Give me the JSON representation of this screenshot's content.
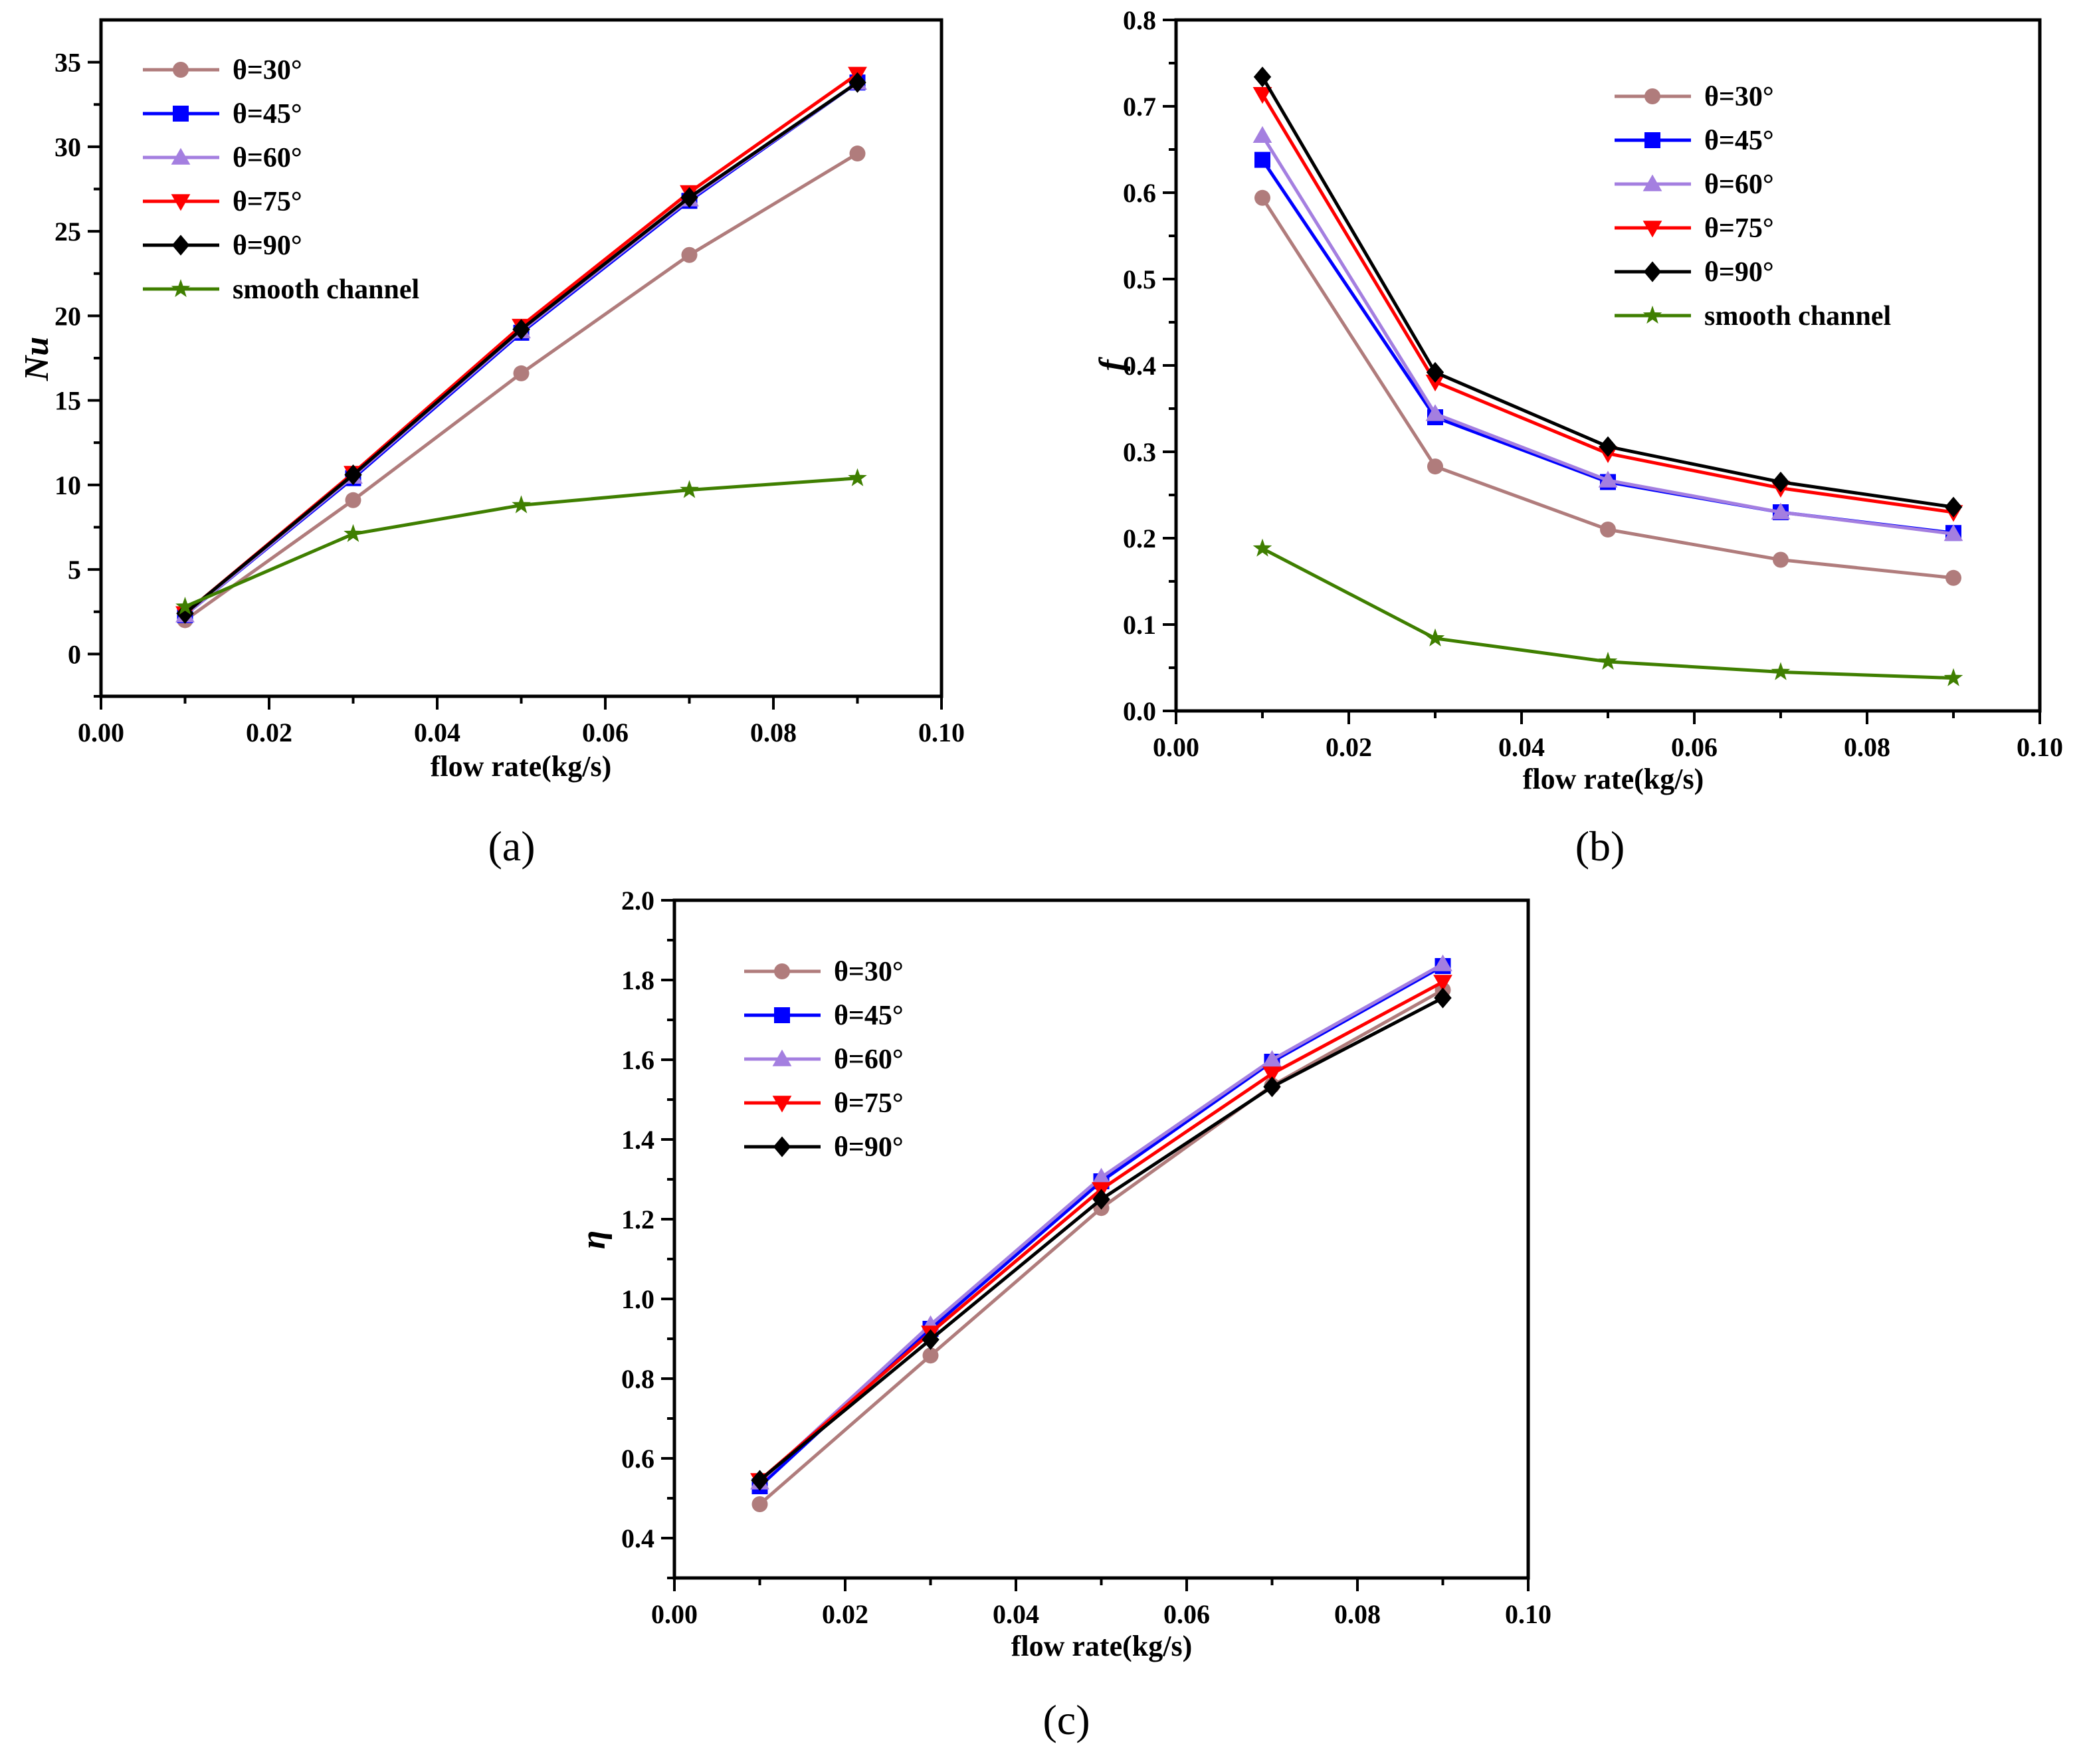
{
  "chart_data": [
    {
      "id": "a",
      "type": "line",
      "caption": "(a)",
      "xlabel": "flow rate(kg/s)",
      "ylabel": "Nu",
      "xlim": [
        0.0,
        0.1
      ],
      "ylim": [
        -2.5,
        37.5
      ],
      "xticks": [
        0.0,
        0.02,
        0.04,
        0.06,
        0.08,
        0.1
      ],
      "xtick_labels": [
        "0.00",
        "0.02",
        "0.04",
        "0.06",
        "0.08",
        "0.10"
      ],
      "yticks": [
        0,
        5,
        10,
        15,
        20,
        25,
        30,
        35
      ],
      "ytick_labels": [
        "0",
        "5",
        "10",
        "15",
        "20",
        "25",
        "30",
        "35"
      ],
      "x": [
        0.01,
        0.03,
        0.05,
        0.07,
        0.09
      ],
      "legend_position": "top-left",
      "series": [
        {
          "name": "θ=30°",
          "color": "#B07C7C",
          "marker": "circle",
          "values": [
            2.0,
            9.1,
            16.6,
            23.6,
            29.6
          ]
        },
        {
          "name": "θ=45°",
          "color": "#0000FF",
          "marker": "square",
          "values": [
            2.3,
            10.4,
            19.0,
            26.8,
            33.8
          ]
        },
        {
          "name": "θ=60°",
          "color": "#A47FE0",
          "marker": "triangle-up",
          "values": [
            2.3,
            10.5,
            19.1,
            26.9,
            33.8
          ]
        },
        {
          "name": "θ=75°",
          "color": "#FF0000",
          "marker": "triangle-down",
          "values": [
            2.4,
            10.7,
            19.4,
            27.3,
            34.3
          ]
        },
        {
          "name": "θ=90°",
          "color": "#000000",
          "marker": "diamond",
          "values": [
            2.4,
            10.6,
            19.2,
            27.0,
            33.8
          ]
        },
        {
          "name": "smooth channel",
          "color": "#3F7F00",
          "marker": "star",
          "values": [
            2.8,
            7.1,
            8.8,
            9.7,
            10.4
          ]
        }
      ]
    },
    {
      "id": "b",
      "type": "line",
      "caption": "(b)",
      "xlabel": "flow rate(kg/s)",
      "ylabel": "f",
      "xlim": [
        0.0,
        0.1
      ],
      "ylim": [
        0.0,
        0.8
      ],
      "xticks": [
        0.0,
        0.02,
        0.04,
        0.06,
        0.08,
        0.1
      ],
      "xtick_labels": [
        "0.00",
        "0.02",
        "0.04",
        "0.06",
        "0.08",
        "0.10"
      ],
      "yticks": [
        0.0,
        0.1,
        0.2,
        0.3,
        0.4,
        0.5,
        0.6,
        0.7,
        0.8
      ],
      "ytick_labels": [
        "0.0",
        "0.1",
        "0.2",
        "0.3",
        "0.4",
        "0.5",
        "0.6",
        "0.7",
        "0.8"
      ],
      "x": [
        0.01,
        0.03,
        0.05,
        0.07,
        0.09
      ],
      "legend_position": "top-right",
      "series": [
        {
          "name": "θ=30°",
          "color": "#B07C7C",
          "marker": "circle",
          "values": [
            0.594,
            0.283,
            0.21,
            0.175,
            0.154
          ]
        },
        {
          "name": "θ=45°",
          "color": "#0000FF",
          "marker": "square",
          "values": [
            0.638,
            0.34,
            0.265,
            0.23,
            0.206
          ]
        },
        {
          "name": "θ=60°",
          "color": "#A47FE0",
          "marker": "triangle-up",
          "values": [
            0.666,
            0.344,
            0.267,
            0.23,
            0.205
          ]
        },
        {
          "name": "θ=75°",
          "color": "#FF0000",
          "marker": "triangle-down",
          "values": [
            0.714,
            0.381,
            0.298,
            0.258,
            0.23
          ]
        },
        {
          "name": "θ=90°",
          "color": "#000000",
          "marker": "diamond",
          "values": [
            0.734,
            0.392,
            0.306,
            0.265,
            0.236
          ]
        },
        {
          "name": "smooth channel",
          "color": "#3F7F00",
          "marker": "star",
          "values": [
            0.188,
            0.084,
            0.057,
            0.045,
            0.038
          ]
        }
      ]
    },
    {
      "id": "c",
      "type": "line",
      "caption": "(c)",
      "xlabel": "flow rate(kg/s)",
      "ylabel": "η",
      "xlim": [
        0.0,
        0.1
      ],
      "ylim": [
        0.3,
        2.0
      ],
      "xticks": [
        0.0,
        0.02,
        0.04,
        0.06,
        0.08,
        0.1
      ],
      "xtick_labels": [
        "0.00",
        "0.02",
        "0.04",
        "0.06",
        "0.08",
        "0.10"
      ],
      "yticks": [
        0.4,
        0.6,
        0.8,
        1.0,
        1.2,
        1.4,
        1.6,
        1.8,
        2.0
      ],
      "ytick_labels": [
        "0.4",
        "0.6",
        "0.8",
        "1.0",
        "1.2",
        "1.4",
        "1.6",
        "1.8",
        "2.0"
      ],
      "x": [
        0.01,
        0.03,
        0.05,
        0.07,
        0.09
      ],
      "legend_position": "top-left",
      "series": [
        {
          "name": "θ=30°",
          "color": "#B07C7C",
          "marker": "circle",
          "values": [
            0.485,
            0.858,
            1.228,
            1.535,
            1.775
          ]
        },
        {
          "name": "θ=45°",
          "color": "#0000FF",
          "marker": "square",
          "values": [
            0.53,
            0.925,
            1.295,
            1.595,
            1.835
          ]
        },
        {
          "name": "θ=60°",
          "color": "#A47FE0",
          "marker": "triangle-up",
          "values": [
            0.54,
            0.935,
            1.305,
            1.6,
            1.84
          ]
        },
        {
          "name": "θ=75°",
          "color": "#FF0000",
          "marker": "triangle-down",
          "values": [
            0.545,
            0.915,
            1.275,
            1.565,
            1.795
          ]
        },
        {
          "name": "θ=90°",
          "color": "#000000",
          "marker": "diamond",
          "values": [
            0.545,
            0.898,
            1.25,
            1.532,
            1.755
          ]
        }
      ]
    }
  ]
}
